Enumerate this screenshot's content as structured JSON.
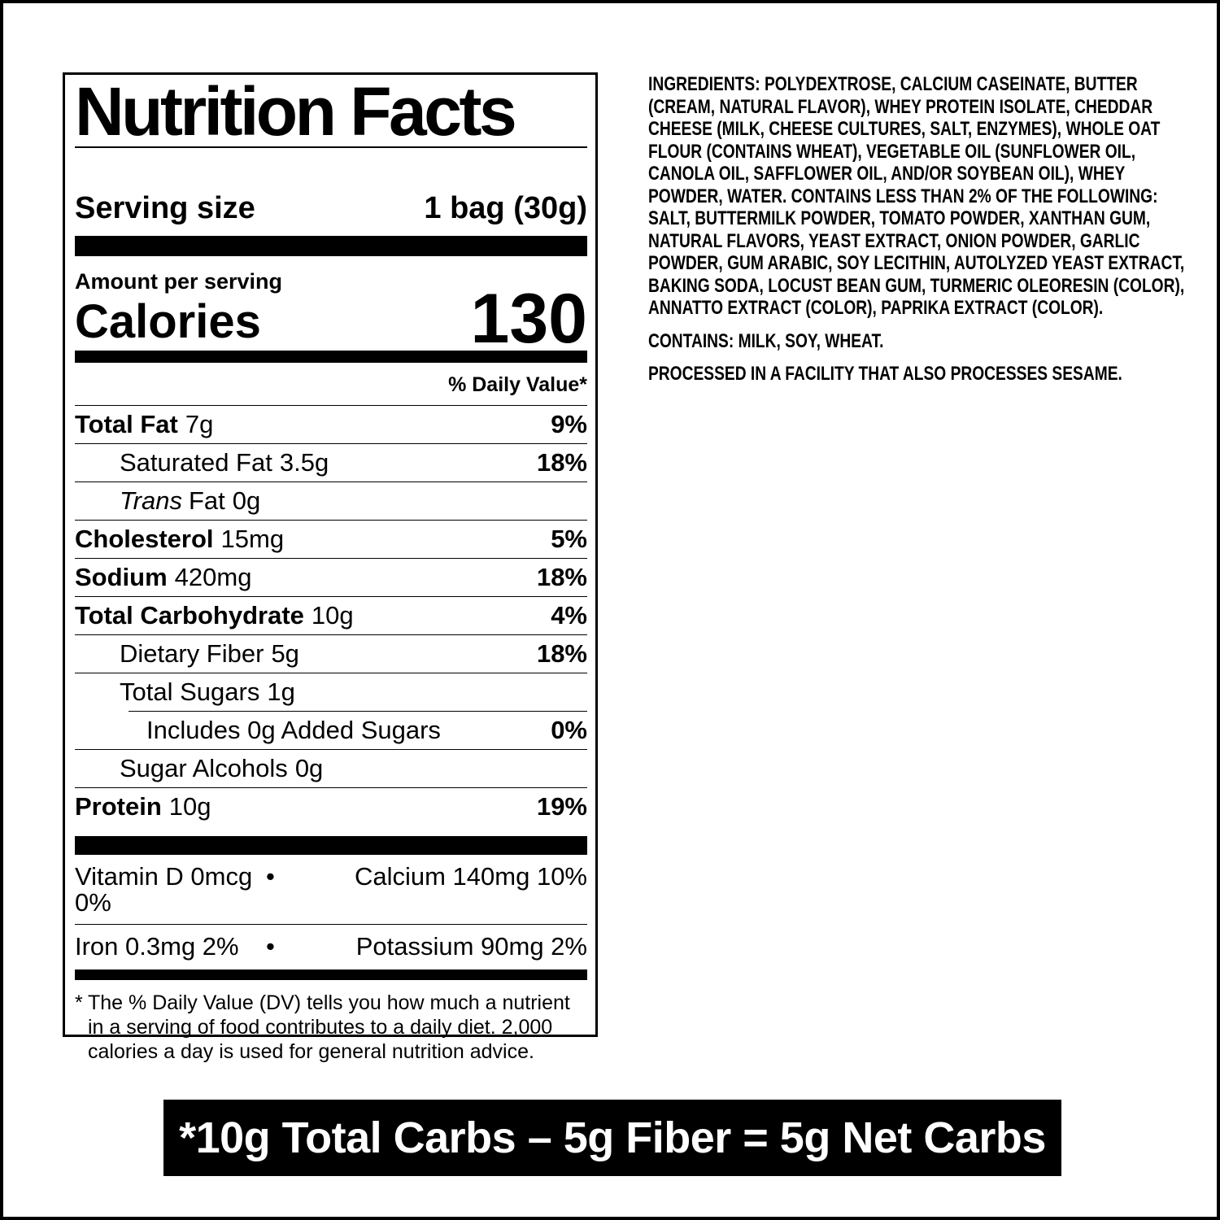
{
  "colors": {
    "ink": "#000000",
    "paper": "#ffffff",
    "banner_bg": "#000000",
    "banner_text": "#ffffff"
  },
  "label": {
    "title": "Nutrition Facts",
    "serving": {
      "label": "Serving size",
      "value": "1 bag (30g)"
    },
    "amount_per_serving": "Amount per serving",
    "calories": {
      "label": "Calories",
      "value": "130"
    },
    "daily_value_header": "% Daily Value*",
    "rows": [
      {
        "name": "Total Fat",
        "amount": "7g",
        "dv": "9%"
      },
      {
        "name": "Saturated Fat",
        "amount": "3.5g",
        "dv": "18%"
      },
      {
        "italic": "Trans",
        "name": "Fat",
        "amount": "0g",
        "dv": ""
      },
      {
        "name": "Cholesterol",
        "amount": "15mg",
        "dv": "5%"
      },
      {
        "name": "Sodium",
        "amount": "420mg",
        "dv": "18%"
      },
      {
        "name": "Total Carbohydrate",
        "amount": "10g",
        "dv": "4%"
      },
      {
        "name": "Dietary Fiber",
        "amount": "5g",
        "dv": "18%"
      },
      {
        "name": "Total Sugars",
        "amount": "1g",
        "dv": ""
      },
      {
        "name": "Includes 0g Added Sugars",
        "amount": "",
        "dv": "0%"
      },
      {
        "name": "Sugar Alcohols",
        "amount": "0g",
        "dv": ""
      },
      {
        "name": "Protein",
        "amount": "10g",
        "dv": "19%"
      }
    ],
    "micronutrients": {
      "separator": "•",
      "rows": [
        {
          "left": "Vitamin D 0mcg 0%",
          "right": "Calcium 140mg 10%"
        },
        {
          "left": "Iron 0.3mg 2%",
          "right": "Potassium 90mg 2%"
        }
      ]
    },
    "footnote": {
      "marker": "*",
      "text": "The % Daily Value (DV) tells you how much a nutrient in a serving of food contributes to a daily diet. 2,000 calories a day is used for general nutrition advice."
    }
  },
  "ingredients": {
    "heading": "INGREDIENTS:",
    "text": " POLYDEXTROSE, CALCIUM CASEINATE, BUTTER (CREAM, NATURAL FLAVOR), WHEY PROTEIN ISOLATE, CHEDDAR CHEESE (MILK, CHEESE CULTURES, SALT, ENZYMES), WHOLE OAT FLOUR (CONTAINS WHEAT), VEGETABLE OIL (SUNFLOWER OIL, CANOLA OIL, SAFFLOWER OIL, AND/OR SOYBEAN OIL), WHEY POWDER, WATER. CONTAINS LESS THAN 2% OF THE FOLLOWING: SALT, BUTTERMILK POWDER, TOMATO POWDER, XANTHAN GUM, NATURAL FLAVORS, YEAST EXTRACT, ONION POWDER, GARLIC POWDER, GUM ARABIC, SOY LECITHIN, AUTOLYZED YEAST EXTRACT, BAKING SODA, LOCUST BEAN GUM, TURMERIC OLEORESIN (COLOR), ANNATTO EXTRACT (COLOR), PAPRIKA EXTRACT (COLOR).",
    "contains": "CONTAINS: MILK, SOY, WHEAT.",
    "facility": "PROCESSED IN A FACILITY THAT ALSO PROCESSES SESAME."
  },
  "banner": {
    "text": "*10g Total Carbs – 5g Fiber = 5g Net Carbs"
  }
}
